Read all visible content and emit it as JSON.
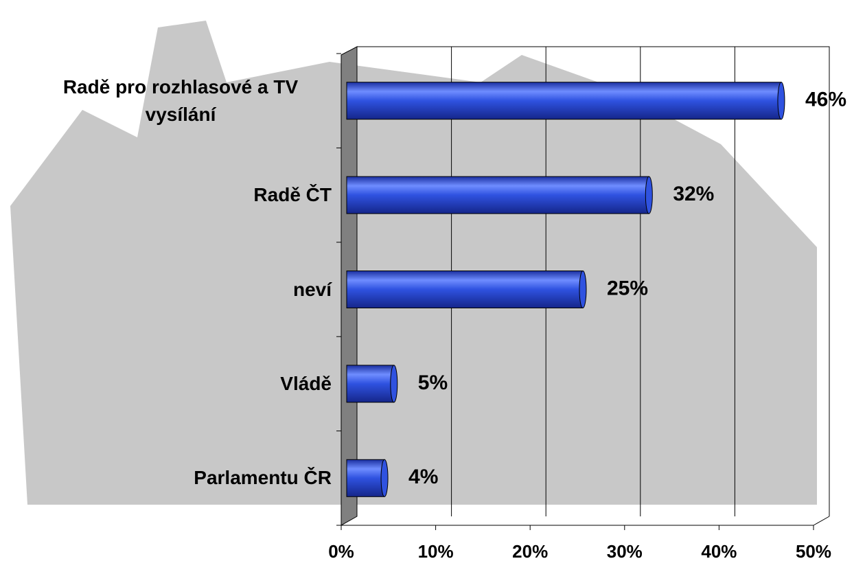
{
  "chart_data": {
    "type": "bar",
    "orientation": "horizontal",
    "categories": [
      "Radě pro rozhlasové a TV vysílání",
      "Radě ČT",
      "neví",
      "Vládě",
      "Parlamentu ČR"
    ],
    "values": [
      46,
      32,
      25,
      5,
      4
    ],
    "value_labels": [
      "46%",
      "32%",
      "25%",
      "5%",
      "4%"
    ],
    "color": "#2f52e0",
    "xlim": [
      0,
      50
    ],
    "xticks": [
      {
        "value": 0,
        "label": "0%"
      },
      {
        "value": 10,
        "label": "10%"
      },
      {
        "value": 20,
        "label": "20%"
      },
      {
        "value": 30,
        "label": "30%"
      },
      {
        "value": 40,
        "label": "40%"
      },
      {
        "value": 50,
        "label": "50%"
      }
    ],
    "grid": true
  }
}
